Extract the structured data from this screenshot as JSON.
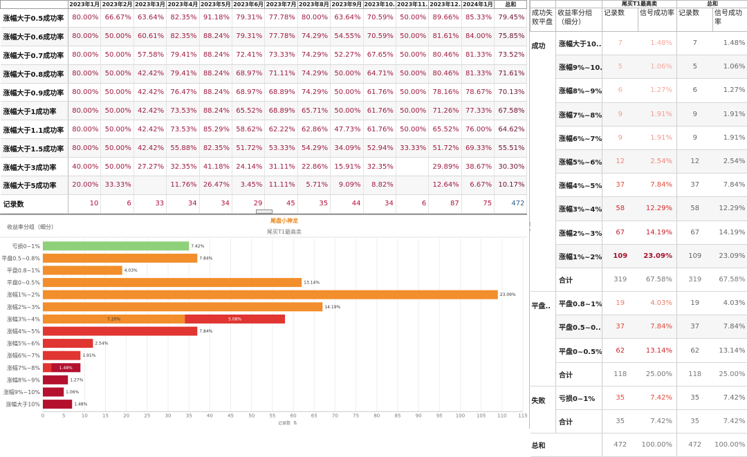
{
  "monthly_table": {
    "columns": [
      "2023年1月",
      "2023年2月",
      "2023年3月",
      "2023年4月",
      "2023年5月",
      "2023年6月",
      "2023年7月",
      "2023年8月",
      "2023年9月",
      "2023年10..",
      "2023年11..",
      "2023年12..",
      "2024年1月",
      "总和"
    ],
    "rows": [
      {
        "label": "涨幅大于0.5成功率",
        "values": [
          "80.00%",
          "66.67%",
          "63.64%",
          "82.35%",
          "91.18%",
          "79.31%",
          "77.78%",
          "80.00%",
          "63.64%",
          "70.59%",
          "50.00%",
          "89.66%",
          "85.33%",
          "79.45%"
        ]
      },
      {
        "label": "涨幅大于0.6成功率",
        "values": [
          "80.00%",
          "50.00%",
          "60.61%",
          "82.35%",
          "88.24%",
          "79.31%",
          "77.78%",
          "74.29%",
          "54.55%",
          "70.59%",
          "50.00%",
          "81.61%",
          "84.00%",
          "75.85%"
        ]
      },
      {
        "label": "涨幅大于0.7成功率",
        "values": [
          "80.00%",
          "50.00%",
          "57.58%",
          "79.41%",
          "88.24%",
          "72.41%",
          "73.33%",
          "74.29%",
          "52.27%",
          "67.65%",
          "50.00%",
          "80.46%",
          "81.33%",
          "73.52%"
        ]
      },
      {
        "label": "涨幅大于0.8成功率",
        "values": [
          "80.00%",
          "50.00%",
          "42.42%",
          "79.41%",
          "88.24%",
          "68.97%",
          "71.11%",
          "74.29%",
          "50.00%",
          "64.71%",
          "50.00%",
          "80.46%",
          "81.33%",
          "71.61%"
        ]
      },
      {
        "label": "涨幅大于0.9成功率",
        "values": [
          "80.00%",
          "50.00%",
          "42.42%",
          "76.47%",
          "88.24%",
          "68.97%",
          "68.89%",
          "74.29%",
          "50.00%",
          "61.76%",
          "50.00%",
          "78.16%",
          "78.67%",
          "70.13%"
        ]
      },
      {
        "label": "涨幅大于1成功率",
        "values": [
          "80.00%",
          "50.00%",
          "42.42%",
          "73.53%",
          "88.24%",
          "65.52%",
          "68.89%",
          "65.71%",
          "50.00%",
          "61.76%",
          "50.00%",
          "71.26%",
          "77.33%",
          "67.58%"
        ]
      },
      {
        "label": "涨幅大于1.1成功率",
        "values": [
          "80.00%",
          "50.00%",
          "42.42%",
          "73.53%",
          "85.29%",
          "58.62%",
          "62.22%",
          "62.86%",
          "47.73%",
          "61.76%",
          "50.00%",
          "65.52%",
          "76.00%",
          "64.62%"
        ]
      },
      {
        "label": "涨幅大于1.5成功率",
        "values": [
          "80.00%",
          "50.00%",
          "42.42%",
          "55.88%",
          "82.35%",
          "51.72%",
          "53.33%",
          "54.29%",
          "34.09%",
          "52.94%",
          "33.33%",
          "51.72%",
          "69.33%",
          "55.51%"
        ]
      },
      {
        "label": "涨幅大于3成功率",
        "values": [
          "40.00%",
          "50.00%",
          "27.27%",
          "32.35%",
          "41.18%",
          "24.14%",
          "31.11%",
          "22.86%",
          "15.91%",
          "32.35%",
          "",
          "29.89%",
          "38.67%",
          "30.30%"
        ]
      },
      {
        "label": "涨幅大于5成功率",
        "values": [
          "20.00%",
          "33.33%",
          "",
          "11.76%",
          "26.47%",
          "3.45%",
          "11.11%",
          "5.71%",
          "9.09%",
          "8.82%",
          "",
          "12.64%",
          "6.67%",
          "10.17%"
        ]
      },
      {
        "label": "记录数",
        "values": [
          "10",
          "6",
          "33",
          "34",
          "34",
          "29",
          "45",
          "35",
          "44",
          "34",
          "6",
          "87",
          "75",
          "472"
        ]
      }
    ]
  },
  "chart": {
    "title": "尾盘小神龙",
    "subtitle": "尾买T1最高卖",
    "header_label": "收益率分组（细分）",
    "x_axis_label": "记录数",
    "toolbar_icons": [
      "close-icon",
      "export-icon",
      "filter-icon",
      "dropdown-icon"
    ]
  },
  "chart_data": {
    "type": "bar",
    "orientation": "horizontal",
    "title": "尾盘小神龙",
    "subtitle": "尾买T1最高卖",
    "xlabel": "记录数",
    "ylabel": "收益率分组（细分）",
    "xlim": [
      0,
      115
    ],
    "xticks": [
      0,
      5,
      10,
      15,
      20,
      25,
      30,
      35,
      40,
      45,
      50,
      55,
      60,
      65,
      70,
      75,
      80,
      85,
      90,
      95,
      100,
      105,
      110,
      115
    ],
    "grid": true,
    "categories": [
      "亏损0~1%",
      "平盘0.5~0.8%",
      "平盘0.8~1%",
      "平盘0~0.5%",
      "涨幅1%~2%",
      "涨幅2%~3%",
      "涨幅3%~4%",
      "涨幅4%~5%",
      "涨幅5%~6%",
      "涨幅6%~7%",
      "涨幅7%~8%",
      "涨幅8%~9%",
      "涨幅9%~10%",
      "涨幅大于10%"
    ],
    "bars": [
      {
        "segments": [
          {
            "value": 35,
            "label": "7.42%",
            "color": "#8fd17a"
          }
        ]
      },
      {
        "segments": [
          {
            "value": 37,
            "label": "7.84%",
            "color": "#f28e2b"
          }
        ]
      },
      {
        "segments": [
          {
            "value": 19,
            "label": "4.03%",
            "color": "#f28e2b"
          }
        ]
      },
      {
        "segments": [
          {
            "value": 62,
            "label": "13.14%",
            "color": "#f28e2b"
          }
        ]
      },
      {
        "segments": [
          {
            "value": 109,
            "label": "23.09%",
            "color": "#f28e2b"
          }
        ]
      },
      {
        "segments": [
          {
            "value": 67,
            "label": "14.19%",
            "color": "#f28e2b"
          }
        ]
      },
      {
        "segments": [
          {
            "value": 34,
            "label": "7.20%",
            "color": "#f28e2b"
          },
          {
            "value": 24,
            "label": "5.08%",
            "color": "#e03531"
          }
        ]
      },
      {
        "segments": [
          {
            "value": 37,
            "label": "7.84%",
            "color": "#e03531"
          }
        ]
      },
      {
        "segments": [
          {
            "value": 12,
            "label": "2.54%",
            "color": "#e03531"
          }
        ]
      },
      {
        "segments": [
          {
            "value": 9,
            "label": "1.91%",
            "color": "#e03531"
          }
        ]
      },
      {
        "segments": [
          {
            "value": 2,
            "label": "",
            "color": "#e03531"
          },
          {
            "value": 7,
            "label": "1.48%",
            "color": "#b3112e"
          }
        ]
      },
      {
        "segments": [
          {
            "value": 6,
            "label": "1.27%",
            "color": "#b3112e"
          }
        ]
      },
      {
        "segments": [
          {
            "value": 5,
            "label": "1.06%",
            "color": "#b3112e"
          }
        ]
      },
      {
        "segments": [
          {
            "value": 7,
            "label": "1.48%",
            "color": "#b3112e"
          }
        ]
      }
    ]
  },
  "summary_table": {
    "group_header_1": "尾买T1最高卖",
    "group_header_2": "总和",
    "headers": [
      "成功失败平盘",
      "收益率分组（细分）",
      "记录数",
      "信号成功率",
      "记录数",
      "信号成功率"
    ],
    "count_colors": [
      "#f4a49a",
      "#f4a49a",
      "#f4a49a",
      "#f4a49a",
      "#f4a49a",
      "#ee7a6c",
      "#e6463a",
      "#d62b2b",
      "#c01d2e",
      "#a3122a"
    ],
    "groups": [
      {
        "name": "成功",
        "rows": [
          {
            "sub": "涨幅大于10..",
            "count": "7",
            "rate": "1.48%",
            "count2": "7",
            "rate2": "1.48%",
            "color": "#f6a89e"
          },
          {
            "sub": "涨幅9%~10..",
            "count": "5",
            "rate": "1.06%",
            "count2": "5",
            "rate2": "1.06%",
            "color": "#f6a89e"
          },
          {
            "sub": "涨幅8%~9%",
            "count": "6",
            "rate": "1.27%",
            "count2": "6",
            "rate2": "1.27%",
            "color": "#f6a89e"
          },
          {
            "sub": "涨幅7%~8%",
            "count": "9",
            "rate": "1.91%",
            "count2": "9",
            "rate2": "1.91%",
            "color": "#f29a8f"
          },
          {
            "sub": "涨幅6%~7%",
            "count": "9",
            "rate": "1.91%",
            "count2": "9",
            "rate2": "1.91%",
            "color": "#f29a8f"
          },
          {
            "sub": "涨幅5%~6%",
            "count": "12",
            "rate": "2.54%",
            "count2": "12",
            "rate2": "2.54%",
            "color": "#ef8579"
          },
          {
            "sub": "涨幅4%~5%",
            "count": "37",
            "rate": "7.84%",
            "count2": "37",
            "rate2": "7.84%",
            "color": "#e24a3b"
          },
          {
            "sub": "涨幅3%~4%",
            "count": "58",
            "rate": "12.29%",
            "count2": "58",
            "rate2": "12.29%",
            "color": "#d3282b"
          },
          {
            "sub": "涨幅2%~3%",
            "count": "67",
            "rate": "14.19%",
            "count2": "67",
            "rate2": "14.19%",
            "color": "#c81e2c"
          },
          {
            "sub": "涨幅1%~2%",
            "count": "109",
            "rate": "23.09%",
            "count2": "109",
            "rate2": "23.09%",
            "color": "#a3102a",
            "bold": true
          },
          {
            "sub": "合计",
            "count": "319",
            "rate": "67.58%",
            "count2": "319",
            "rate2": "67.58%",
            "subtotal": true
          }
        ]
      },
      {
        "name": "平盘..",
        "rows": [
          {
            "sub": "平盘0.8~1%",
            "count": "19",
            "rate": "4.03%",
            "count2": "19",
            "rate2": "4.03%",
            "color": "#ee7a6c"
          },
          {
            "sub": "平盘0.5~0..",
            "count": "37",
            "rate": "7.84%",
            "count2": "37",
            "rate2": "7.84%",
            "color": "#e24a3b"
          },
          {
            "sub": "平盘0~0.5%",
            "count": "62",
            "rate": "13.14%",
            "count2": "62",
            "rate2": "13.14%",
            "color": "#cf252b"
          },
          {
            "sub": "合计",
            "count": "118",
            "rate": "25.00%",
            "count2": "118",
            "rate2": "25.00%",
            "subtotal": true
          }
        ]
      },
      {
        "name": "失败",
        "rows": [
          {
            "sub": "亏损0~1%",
            "count": "35",
            "rate": "7.42%",
            "count2": "35",
            "rate2": "7.42%",
            "color": "#e24a3b"
          },
          {
            "sub": "合计",
            "count": "35",
            "rate": "7.42%",
            "count2": "35",
            "rate2": "7.42%",
            "subtotal": true
          }
        ]
      }
    ],
    "grand_total": {
      "label": "总和",
      "count": "472",
      "rate": "100.00%",
      "count2": "472",
      "rate2": "100.00%"
    }
  }
}
